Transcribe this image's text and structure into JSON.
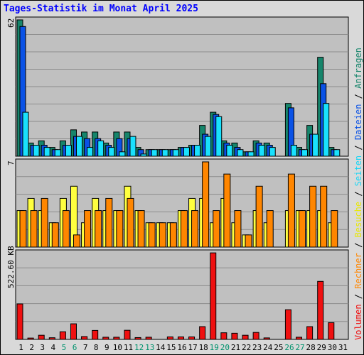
{
  "title": "Tages-Statistik im Monat April 2025",
  "chart_data": [
    {
      "type": "bar",
      "panel": "top",
      "max_label": "62",
      "ylim": [
        0,
        62
      ],
      "grid": true,
      "categories": [
        "1",
        "2",
        "3",
        "4",
        "5",
        "6",
        "7",
        "8",
        "9",
        "10",
        "11",
        "12",
        "13",
        "14",
        "15",
        "16",
        "17",
        "18",
        "19",
        "20",
        "21",
        "22",
        "23",
        "24",
        "25",
        "26",
        "27",
        "28",
        "29",
        "30",
        "31"
      ],
      "weekend_days": [
        "5",
        "6",
        "12",
        "13",
        "19",
        "20",
        "26",
        "27"
      ],
      "series": [
        {
          "name": "Anfragen",
          "color": "#16856b",
          "values": [
            62,
            6,
            7,
            4,
            7,
            12,
            11,
            11,
            6,
            11,
            11,
            4,
            3,
            3,
            3,
            4,
            5,
            14,
            20,
            7,
            6,
            2,
            7,
            6,
            0,
            24,
            4,
            14,
            45,
            4,
            0
          ]
        },
        {
          "name": "Dateien",
          "color": "#0a52e6",
          "values": [
            59,
            5,
            5,
            3,
            5,
            9,
            8,
            8,
            5,
            8,
            8,
            3,
            3,
            3,
            3,
            4,
            5,
            10,
            19,
            6,
            4,
            2,
            6,
            5,
            0,
            22,
            3,
            10,
            33,
            3,
            0
          ]
        },
        {
          "name": "Seiten",
          "color": "#19e1fd",
          "values": [
            20,
            5,
            4,
            3,
            5,
            9,
            4,
            7,
            4,
            2,
            9,
            1,
            3,
            3,
            3,
            4,
            5,
            9,
            18,
            5,
            3,
            2,
            5,
            4,
            0,
            5,
            3,
            10,
            24,
            3,
            0
          ]
        }
      ]
    },
    {
      "type": "bar",
      "panel": "middle",
      "max_label": "7",
      "ylim": [
        0,
        7
      ],
      "grid": true,
      "categories": [
        "1",
        "2",
        "3",
        "4",
        "5",
        "6",
        "7",
        "8",
        "9",
        "10",
        "11",
        "12",
        "13",
        "14",
        "15",
        "16",
        "17",
        "18",
        "19",
        "20",
        "21",
        "22",
        "23",
        "24",
        "25",
        "26",
        "27",
        "28",
        "29",
        "30",
        "31"
      ],
      "series": [
        {
          "name": "Besuche",
          "color": "#ffff3f",
          "values": [
            3,
            4,
            3,
            2,
            4,
            5,
            2,
            4,
            3,
            3,
            5,
            3,
            2,
            2,
            2,
            3,
            4,
            4,
            2,
            4,
            2,
            1,
            3,
            2,
            0,
            3,
            3,
            3,
            3,
            2,
            0
          ]
        },
        {
          "name": "Rechner",
          "color": "#ff8600",
          "values": [
            3,
            3,
            4,
            2,
            3,
            1,
            3,
            3,
            4,
            3,
            4,
            3,
            2,
            2,
            2,
            3,
            3,
            7,
            3,
            6,
            3,
            1,
            5,
            3,
            0,
            6,
            3,
            5,
            5,
            3,
            0
          ]
        }
      ]
    },
    {
      "type": "bar",
      "panel": "bottom",
      "max_label": "522.60 KB",
      "ylim": [
        0,
        522.6
      ],
      "grid": true,
      "categories": [
        "1",
        "2",
        "3",
        "4",
        "5",
        "6",
        "7",
        "8",
        "9",
        "10",
        "11",
        "12",
        "13",
        "14",
        "15",
        "16",
        "17",
        "18",
        "19",
        "20",
        "21",
        "22",
        "23",
        "24",
        "25",
        "26",
        "27",
        "28",
        "29",
        "30",
        "31"
      ],
      "series": [
        {
          "name": "Volumen",
          "color": "#ef1010",
          "values": [
            214,
            8,
            25,
            10,
            46,
            94,
            17,
            54,
            13,
            13,
            55,
            11,
            13,
            0,
            15,
            15,
            15,
            77,
            522,
            40,
            37,
            25,
            42,
            9,
            0,
            179,
            13,
            77,
            350,
            101,
            0
          ]
        }
      ]
    }
  ],
  "legend": {
    "volumen": {
      "label": "Volumen",
      "color": "#ef1010"
    },
    "rechner": {
      "label": "Rechner",
      "color": "#ff8600"
    },
    "besuche": {
      "label": "Besuche",
      "color": "#ffff3f"
    },
    "seiten": {
      "label": "Seiten",
      "color": "#19e1fd"
    },
    "dateien": {
      "label": "Dateien",
      "color": "#0a52e6"
    },
    "anfragen": {
      "label": "Anfragen",
      "color": "#16856b"
    },
    "separator": " / "
  },
  "colors": {
    "background": "#d9d9d9",
    "plot_background": "#c0c0c0",
    "title": "#0000ff",
    "weekday_label": "#000000",
    "weekend_label": "#00926d"
  }
}
